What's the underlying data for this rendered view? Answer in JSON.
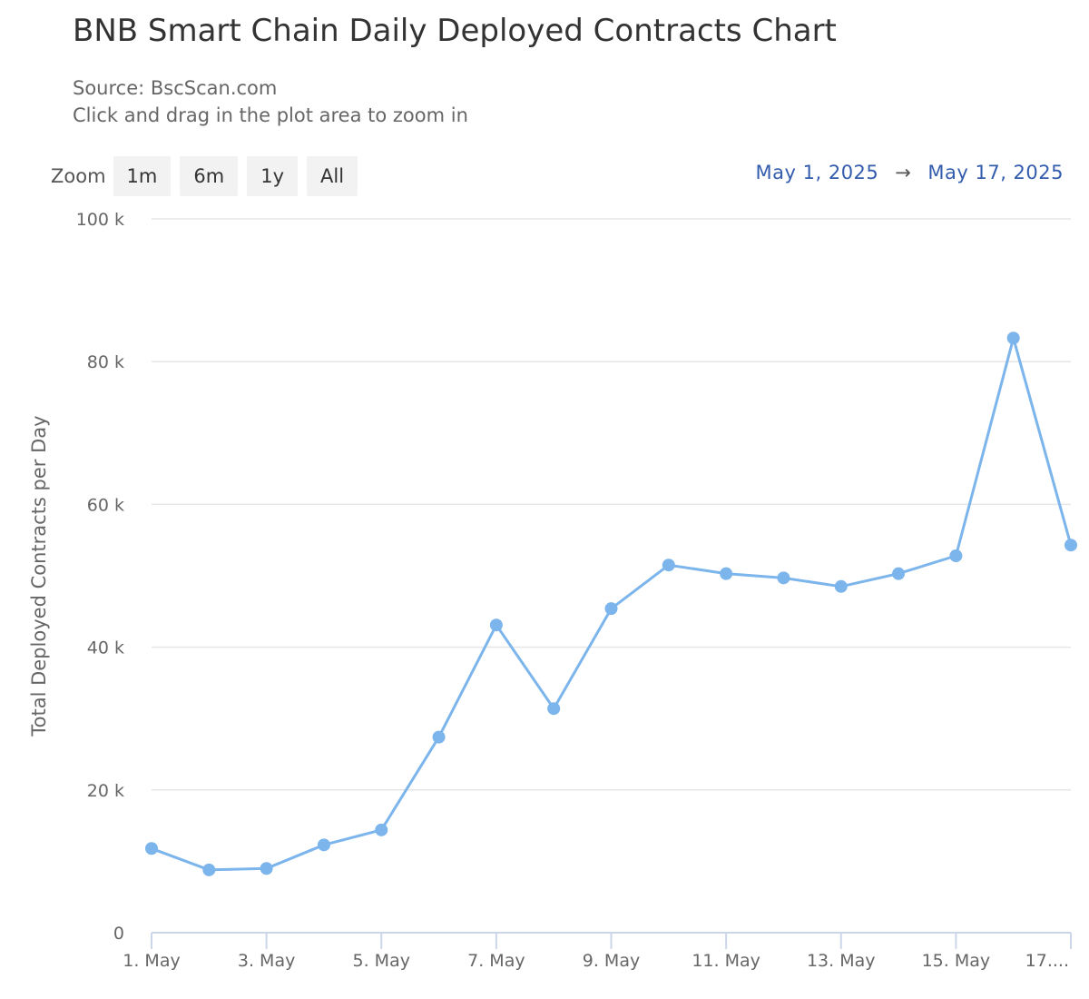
{
  "header": {
    "title": "BNB Smart Chain Daily Deployed Contracts Chart",
    "source": "Source: BscScan.com",
    "hint": "Click and drag in the plot area to zoom in"
  },
  "zoom": {
    "label": "Zoom",
    "buttons": [
      "1m",
      "6m",
      "1y",
      "All"
    ]
  },
  "range": {
    "from": "May 1, 2025",
    "arrow": "→",
    "to": "May 17, 2025"
  },
  "colors": {
    "series": "#7cb5ec",
    "grid": "#e6e6e6",
    "axis": "#ccd6eb",
    "range_text": "#335cad"
  },
  "chart_data": {
    "type": "line",
    "title": "BNB Smart Chain Daily Deployed Contracts Chart",
    "subtitle": "Source: BscScan.com",
    "xlabel": "",
    "ylabel": "Total Deployed Contracts per Day",
    "ylim": [
      0,
      100000
    ],
    "yticks": [
      0,
      20000,
      40000,
      60000,
      80000,
      100000
    ],
    "ytick_labels": [
      "0",
      "20 k",
      "40 k",
      "60 k",
      "80 k",
      "100 k"
    ],
    "xtick_labels": [
      "1. May",
      "3. May",
      "5. May",
      "7. May",
      "9. May",
      "11. May",
      "13. May",
      "15. May",
      "17...."
    ],
    "grid": true,
    "legend": false,
    "categories": [
      "May 1",
      "May 2",
      "May 3",
      "May 4",
      "May 5",
      "May 6",
      "May 7",
      "May 8",
      "May 9",
      "May 10",
      "May 11",
      "May 12",
      "May 13",
      "May 14",
      "May 15",
      "May 16",
      "May 17"
    ],
    "series": [
      {
        "name": "Total Deployed Contracts per Day",
        "values": [
          11800,
          8800,
          9000,
          12300,
          14400,
          27400,
          43100,
          31400,
          45400,
          51500,
          50300,
          49700,
          48500,
          50300,
          52800,
          83300,
          54300
        ]
      }
    ]
  }
}
